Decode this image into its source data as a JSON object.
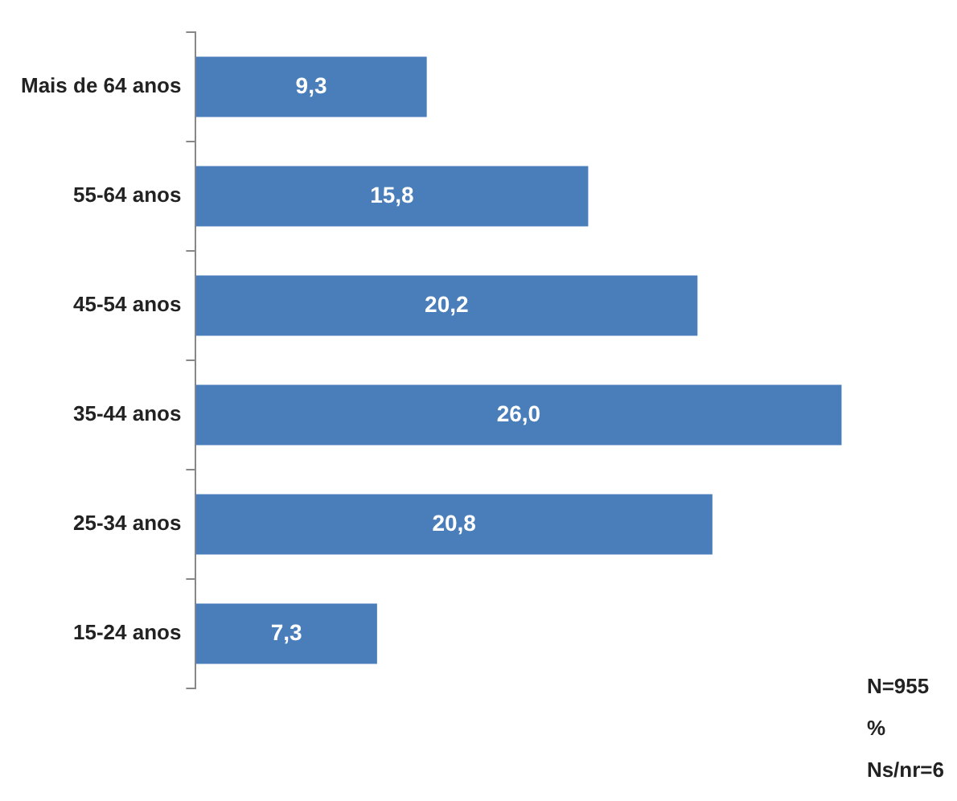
{
  "chart_data": {
    "type": "bar",
    "orientation": "horizontal",
    "categories": [
      "Mais de 64 anos",
      "55-64 anos",
      "45-54 anos",
      "35-44 anos",
      "25-34 anos",
      "15-24 anos"
    ],
    "values": [
      9.3,
      15.8,
      20.2,
      26.0,
      20.8,
      7.3
    ],
    "value_labels": [
      "9,3",
      "15,8",
      "20,2",
      "26,0",
      "20,8",
      "7,3"
    ],
    "color": "#4a7ebb",
    "legend": false,
    "annotations": [
      "N=955",
      "%",
      "Ns/nr=6"
    ]
  }
}
